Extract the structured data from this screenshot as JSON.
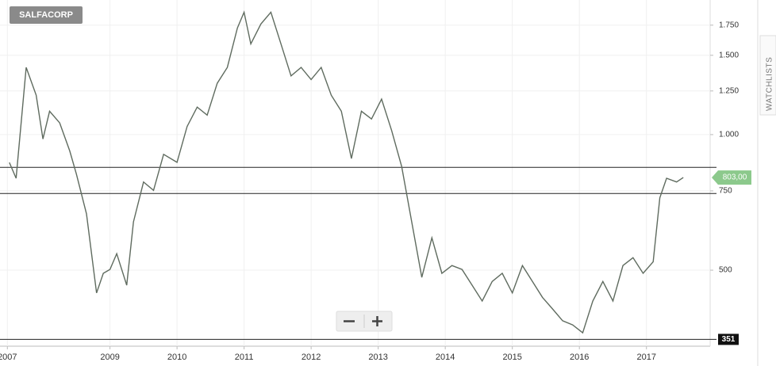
{
  "chart_data": {
    "type": "line",
    "title": "SALFACORP",
    "x": [
      2007.5,
      2007.6,
      2007.75,
      2007.9,
      2008.0,
      2008.1,
      2008.25,
      2008.4,
      2008.5,
      2008.65,
      2008.8,
      2008.9,
      2009.0,
      2009.1,
      2009.25,
      2009.35,
      2009.5,
      2009.65,
      2009.8,
      2010.0,
      2010.15,
      2010.3,
      2010.45,
      2010.6,
      2010.75,
      2010.9,
      2011.0,
      2011.1,
      2011.25,
      2011.4,
      2011.55,
      2011.7,
      2011.85,
      2012.0,
      2012.15,
      2012.3,
      2012.45,
      2012.6,
      2012.75,
      2012.9,
      2013.05,
      2013.2,
      2013.35,
      2013.5,
      2013.65,
      2013.8,
      2013.95,
      2014.1,
      2014.25,
      2014.4,
      2014.55,
      2014.7,
      2014.85,
      2015.0,
      2015.15,
      2015.3,
      2015.45,
      2015.6,
      2015.75,
      2015.9,
      2016.05,
      2016.2,
      2016.35,
      2016.5,
      2016.65,
      2016.8,
      2016.95,
      2017.1,
      2017.2,
      2017.3,
      2017.45,
      2017.55
    ],
    "values": [
      867,
      800,
      1410,
      1223,
      978,
      1127,
      1062,
      920,
      817,
      667,
      445,
      492,
      502,
      544,
      463,
      640,
      785,
      752,
      904,
      868,
      1042,
      1151,
      1105,
      1300,
      1410,
      1725,
      1870,
      1590,
      1760,
      1870,
      1590,
      1350,
      1410,
      1325,
      1410,
      1223,
      1127,
      885,
      1127,
      1083,
      1199,
      1021,
      850,
      640,
      482,
      590,
      492,
      512,
      502,
      463,
      427,
      472,
      492,
      445,
      512,
      472,
      435,
      410,
      386,
      378,
      363,
      427,
      472,
      427,
      512,
      533,
      492,
      522,
      724,
      800,
      785,
      803
    ],
    "color": "#5f6b5f",
    "xlim": [
      2007.36,
      2017.95
    ],
    "xticks": [
      {
        "value": 2007.47,
        "label": "2007"
      },
      2009,
      2010,
      2011,
      2012,
      2013,
      2014,
      2015,
      2016,
      2017
    ],
    "ylim": [
      339,
      1990
    ],
    "yticks": [
      500,
      750,
      {
        "value": 1000,
        "label": "1.000"
      },
      {
        "value": 1250,
        "label": "1.250"
      },
      {
        "value": 1500,
        "label": "1.500"
      },
      {
        "value": 1750,
        "label": "1.750"
      }
    ],
    "log_scale": true,
    "grid": true,
    "last_price": {
      "value": 803,
      "label": "803,00"
    },
    "lines": [
      846,
      740
    ],
    "low_line": {
      "value": 351,
      "label": "351"
    },
    "side_tab": "WATCHLISTS"
  }
}
